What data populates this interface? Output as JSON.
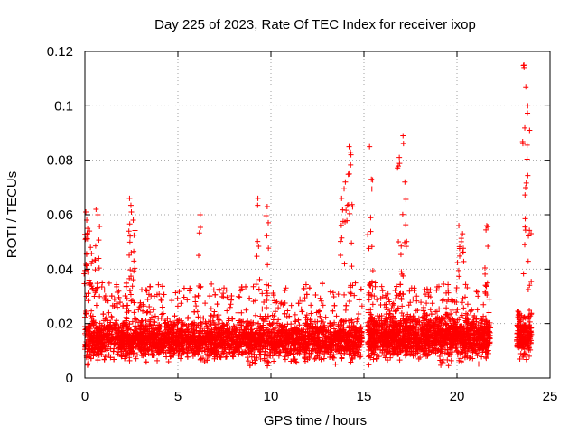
{
  "chart_data": {
    "type": "scatter",
    "title": "Day 225 of 2023, Rate Of TEC Index for receiver ixop",
    "xlabel": "GPS time / hours",
    "ylabel": "ROTI / TECUs",
    "xlim": [
      0,
      25
    ],
    "ylim": [
      0,
      0.12
    ],
    "xticks": [
      "0",
      "5",
      "10",
      "15",
      "20",
      "25"
    ],
    "xtick_values": [
      0,
      5,
      10,
      15,
      20,
      25
    ],
    "yticks": [
      "0",
      "0.02",
      "0.04",
      "0.06",
      "0.08",
      "0.1",
      "0.12"
    ],
    "ytick_values": [
      0,
      0.02,
      0.04,
      0.06,
      0.08,
      0.1,
      0.12
    ],
    "grid": true,
    "marker": "plus",
    "color": "#ff0000",
    "data_gaps_hours": [
      [
        14.9,
        15.2
      ],
      [
        21.8,
        23.2
      ]
    ],
    "highlight_points": {
      "x": [
        0.05,
        0.1,
        0.15,
        0.3,
        0.6,
        0.7,
        2.4,
        2.5,
        2.6,
        6.2,
        9.3,
        9.8,
        13.8,
        14.0,
        14.2,
        14.3,
        15.3,
        15.4,
        16.9,
        17.1,
        17.2,
        20.1,
        20.3,
        21.6,
        23.6,
        23.7,
        23.8,
        23.9
      ],
      "y": [
        0.061,
        0.058,
        0.055,
        0.048,
        0.062,
        0.06,
        0.066,
        0.061,
        0.058,
        0.06,
        0.066,
        0.063,
        0.066,
        0.072,
        0.085,
        0.082,
        0.085,
        0.073,
        0.081,
        0.089,
        0.072,
        0.056,
        0.053,
        0.056,
        0.115,
        0.107,
        0.1,
        0.091
      ]
    },
    "background_band": {
      "segments": [
        {
          "x_start": 0.0,
          "x_end": 14.9,
          "y_low": 0.004,
          "y_typical": 0.012,
          "y_high": 0.035
        },
        {
          "x_start": 15.2,
          "x_end": 21.8,
          "y_low": 0.004,
          "y_typical": 0.013,
          "y_high": 0.035
        },
        {
          "x_start": 23.2,
          "x_end": 24.0,
          "y_low": 0.005,
          "y_typical": 0.013,
          "y_high": 0.025
        }
      ]
    }
  }
}
